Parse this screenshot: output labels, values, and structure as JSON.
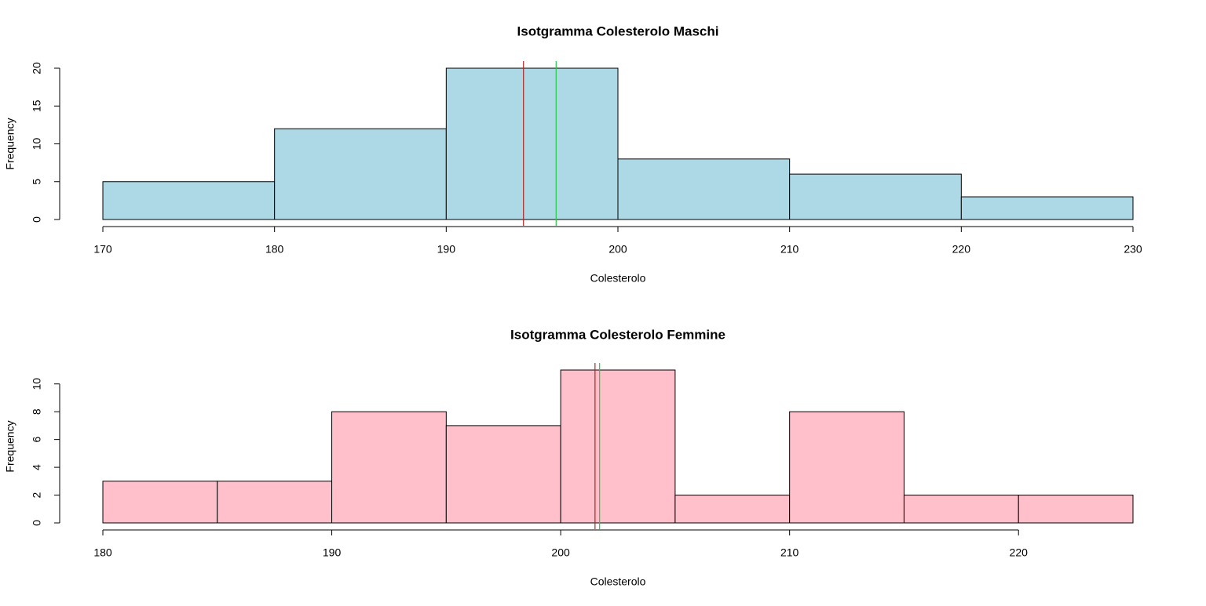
{
  "chart_data": [
    {
      "type": "histogram",
      "title": "Isotgramma Colesterolo Maschi",
      "xlabel": "Colesterolo",
      "ylabel": "Frequency",
      "bins": [
        170,
        180,
        190,
        200,
        210,
        220,
        230
      ],
      "values": [
        5,
        12,
        20,
        8,
        6,
        3
      ],
      "color": "#add8e6",
      "xlim": [
        170,
        230
      ],
      "xticks": [
        170,
        180,
        190,
        200,
        210,
        220,
        230
      ],
      "ylim": [
        0,
        20
      ],
      "yticks": [
        0,
        5,
        10,
        15,
        20
      ],
      "vlines": [
        {
          "value": 194.5,
          "color": "#b22222"
        },
        {
          "value": 196.4,
          "color": "#22cc44"
        }
      ]
    },
    {
      "type": "histogram",
      "title": "Isotgramma Colesterolo Femmine",
      "xlabel": "Colesterolo",
      "ylabel": "Frequency",
      "bins": [
        180,
        185,
        190,
        195,
        200,
        205,
        210,
        215,
        220,
        225
      ],
      "values": [
        3,
        3,
        8,
        7,
        11,
        2,
        8,
        2,
        2
      ],
      "color": "#ffc0cb",
      "xlim": [
        180,
        225
      ],
      "xticks": [
        180,
        190,
        200,
        210,
        220
      ],
      "ylim": [
        0,
        11
      ],
      "yticks": [
        0,
        2,
        4,
        6,
        8,
        10
      ],
      "vlines": [
        {
          "value": 201.5,
          "color": "#b22222"
        },
        {
          "value": 201.7,
          "color": "#22cc44"
        }
      ]
    }
  ]
}
